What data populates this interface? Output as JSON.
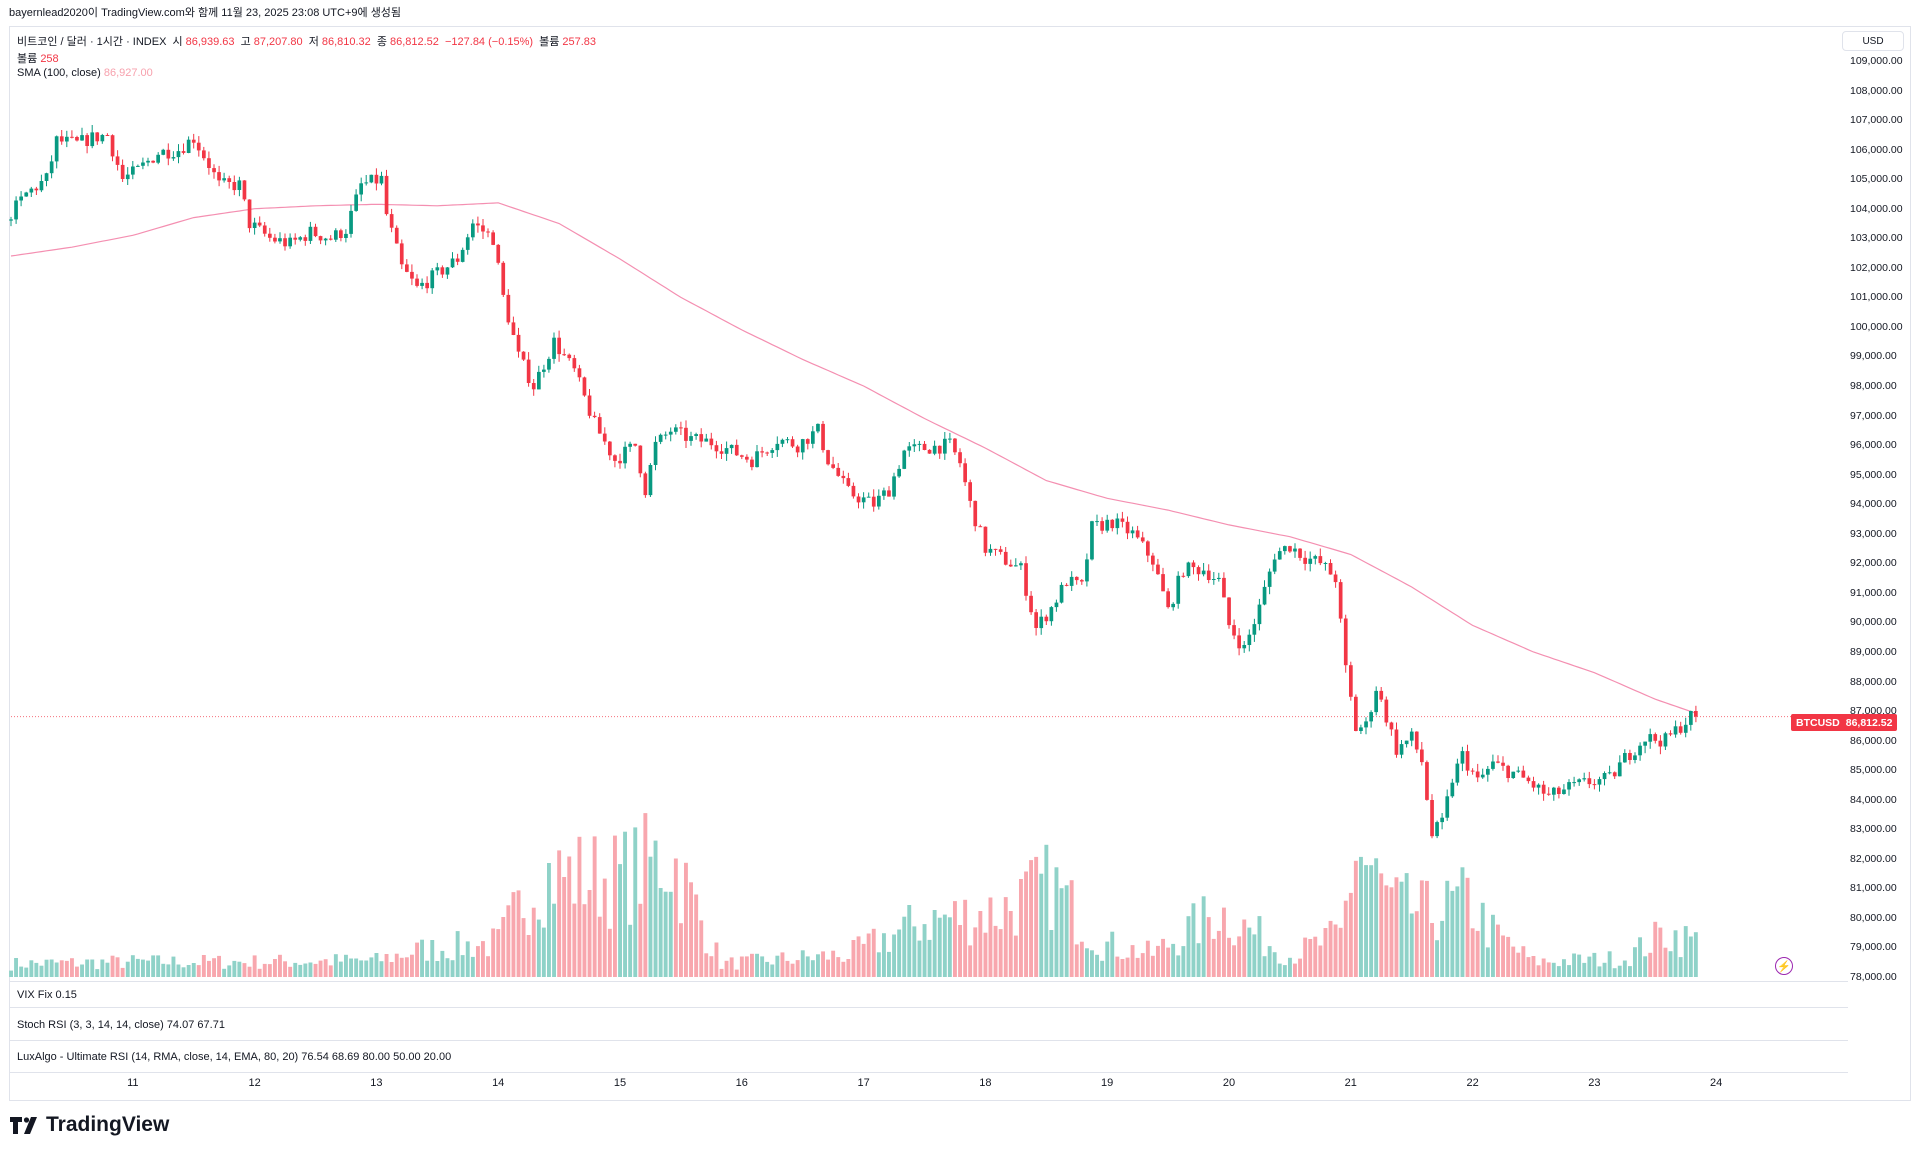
{
  "header": {
    "caption": "bayernlead2020이 TradingView.com와 함께 11월 23, 2025 23:08 UTC+9에 생성됨"
  },
  "legend": {
    "symbol": "비트코인 / 달러 · 1시간 · INDEX",
    "open_label": "시",
    "open": "86,939.63",
    "high_label": "고",
    "high": "87,207.80",
    "low_label": "저",
    "low": "86,810.32",
    "close_label": "종",
    "close": "86,812.52",
    "change": "−127.84 (−0.15%)",
    "volume_label": "볼륨",
    "volume": "257.83",
    "volume_row_label": "볼륨",
    "volume_row_value": "258",
    "sma_label": "SMA (100, close)",
    "sma_value": "86,927.00"
  },
  "indicators": {
    "vix_label": "VIX Fix",
    "vix_value": "0.15",
    "stoch_label": "Stoch RSI (3, 3, 14, 14, close)",
    "stoch_k": "74.07",
    "stoch_d": "67.71",
    "ursi_label": "LuxAlgo - Ultimate RSI (14, RMA, close, 14, EMA, 80, 20)",
    "ursi_v1": "76.54",
    "ursi_v2": "68.69",
    "ursi_v3": "80.00",
    "ursi_v4": "50.00",
    "ursi_v5": "20.00"
  },
  "currency": "USD",
  "price_tag": {
    "symbol": "BTCUSD",
    "value": "86,812.52"
  },
  "brand": "TradingView",
  "colors": {
    "up": "#089981",
    "down": "#f23645",
    "up_volume": "#8fd2c8",
    "down_volume": "#f8a7ae",
    "sma": "#f48fb1"
  },
  "chart_data": {
    "type": "candlestick",
    "title": "",
    "y_axis_ticks": [
      "109,000.00",
      "108,000.00",
      "107,000.00",
      "106,000.00",
      "105,000.00",
      "104,000.00",
      "103,000.00",
      "102,000.00",
      "101,000.00",
      "100,000.00",
      "99,000.00",
      "98,000.00",
      "97,000.00",
      "96,000.00",
      "95,000.00",
      "94,000.00",
      "93,000.00",
      "92,000.00",
      "91,000.00",
      "90,000.00",
      "89,000.00",
      "88,000.00",
      "87,000.00",
      "86,000.00",
      "85,000.00",
      "84,000.00",
      "83,000.00",
      "82,000.00",
      "81,000.00",
      "80,000.00",
      "79,000.00",
      "78,000.00"
    ],
    "y_tick_values": [
      109000,
      108000,
      107000,
      106000,
      105000,
      104000,
      103000,
      102000,
      101000,
      100000,
      99000,
      98000,
      97000,
      96000,
      95000,
      94000,
      93000,
      92000,
      91000,
      90000,
      89000,
      88000,
      87000,
      86000,
      85000,
      84000,
      83000,
      82000,
      81000,
      80000,
      79000,
      78000
    ],
    "ylim": [
      78000,
      109000
    ],
    "x_axis_ticks": [
      "11",
      "12",
      "13",
      "14",
      "15",
      "16",
      "17",
      "18",
      "19",
      "20",
      "21",
      "22",
      "23",
      "24"
    ],
    "x_tick_hours": [
      24,
      48,
      72,
      96,
      120,
      144,
      168,
      192,
      216,
      240,
      264,
      288,
      312,
      336
    ],
    "x_range_hours": [
      0,
      347
    ],
    "last_hour": 332,
    "price_path": [
      [
        0,
        103600
      ],
      [
        4,
        104500
      ],
      [
        8,
        105000
      ],
      [
        10,
        106300
      ],
      [
        14,
        106200
      ],
      [
        17,
        106400
      ],
      [
        20,
        106500
      ],
      [
        23,
        105000
      ],
      [
        26,
        105300
      ],
      [
        30,
        105900
      ],
      [
        34,
        106000
      ],
      [
        37,
        106400
      ],
      [
        40,
        105500
      ],
      [
        42,
        104800
      ],
      [
        46,
        104800
      ],
      [
        48,
        103500
      ],
      [
        52,
        103000
      ],
      [
        56,
        102800
      ],
      [
        60,
        103200
      ],
      [
        64,
        103000
      ],
      [
        67,
        103300
      ],
      [
        70,
        104800
      ],
      [
        74,
        105000
      ],
      [
        75,
        103800
      ],
      [
        78,
        102000
      ],
      [
        81,
        101300
      ],
      [
        85,
        101800
      ],
      [
        89,
        102300
      ],
      [
        92,
        103500
      ],
      [
        96,
        103000
      ],
      [
        98,
        101000
      ],
      [
        101,
        99000
      ],
      [
        104,
        98000
      ],
      [
        108,
        99500
      ],
      [
        112,
        98500
      ],
      [
        116,
        96700
      ],
      [
        120,
        95500
      ],
      [
        124,
        96000
      ],
      [
        126,
        94500
      ],
      [
        128,
        96000
      ],
      [
        131,
        96500
      ],
      [
        135,
        96200
      ],
      [
        139,
        96100
      ],
      [
        143,
        95800
      ],
      [
        147,
        95500
      ],
      [
        152,
        96200
      ],
      [
        156,
        96000
      ],
      [
        160,
        96500
      ],
      [
        162,
        95500
      ],
      [
        166,
        94400
      ],
      [
        171,
        94000
      ],
      [
        174,
        94500
      ],
      [
        177,
        95800
      ],
      [
        181,
        95900
      ],
      [
        186,
        96000
      ],
      [
        188,
        95400
      ],
      [
        190,
        94000
      ],
      [
        193,
        92500
      ],
      [
        197,
        92100
      ],
      [
        200,
        91800
      ],
      [
        203,
        89800
      ],
      [
        206,
        90500
      ],
      [
        209,
        91400
      ],
      [
        212,
        91200
      ],
      [
        214,
        93200
      ],
      [
        218,
        93400
      ],
      [
        222,
        93000
      ],
      [
        226,
        92100
      ],
      [
        229,
        90400
      ],
      [
        232,
        91800
      ],
      [
        236,
        91800
      ],
      [
        239,
        91400
      ],
      [
        241,
        89900
      ],
      [
        244,
        89100
      ],
      [
        247,
        90500
      ],
      [
        250,
        92300
      ],
      [
        253,
        92600
      ],
      [
        256,
        92200
      ],
      [
        259,
        92000
      ],
      [
        262,
        91500
      ],
      [
        264,
        88400
      ],
      [
        266,
        86400
      ],
      [
        268,
        86500
      ],
      [
        270,
        87800
      ],
      [
        272,
        86800
      ],
      [
        274,
        85700
      ],
      [
        277,
        86100
      ],
      [
        279,
        85300
      ],
      [
        281,
        82800
      ],
      [
        283,
        83200
      ],
      [
        285,
        84700
      ],
      [
        287,
        85500
      ],
      [
        290,
        84600
      ],
      [
        293,
        85200
      ],
      [
        297,
        84900
      ],
      [
        300,
        84600
      ],
      [
        304,
        84100
      ],
      [
        308,
        84400
      ],
      [
        312,
        84600
      ],
      [
        316,
        84700
      ],
      [
        319,
        85400
      ],
      [
        323,
        86100
      ],
      [
        327,
        86000
      ],
      [
        330,
        86500
      ],
      [
        332,
        86812
      ]
    ],
    "volume_ylim": [
      0,
      2200
    ],
    "volume_peaks": [
      [
        0,
        200
      ],
      [
        24,
        230
      ],
      [
        48,
        230
      ],
      [
        72,
        250
      ],
      [
        80,
        400
      ],
      [
        96,
        520
      ],
      [
        104,
        1550
      ],
      [
        120,
        1500
      ],
      [
        130,
        1850
      ],
      [
        140,
        200
      ],
      [
        165,
        340
      ],
      [
        180,
        850
      ],
      [
        195,
        1000
      ],
      [
        205,
        1400
      ],
      [
        215,
        500
      ],
      [
        225,
        350
      ],
      [
        238,
        1000
      ],
      [
        252,
        320
      ],
      [
        262,
        640
      ],
      [
        265,
        1950
      ],
      [
        272,
        1100
      ],
      [
        280,
        960
      ],
      [
        287,
        1160
      ],
      [
        292,
        660
      ],
      [
        300,
        230
      ],
      [
        318,
        280
      ],
      [
        326,
        670
      ],
      [
        332,
        540
      ]
    ],
    "sma_path": [
      [
        0,
        102400
      ],
      [
        12,
        102700
      ],
      [
        24,
        103100
      ],
      [
        36,
        103700
      ],
      [
        48,
        104000
      ],
      [
        60,
        104100
      ],
      [
        72,
        104150
      ],
      [
        84,
        104100
      ],
      [
        96,
        104200
      ],
      [
        108,
        103500
      ],
      [
        120,
        102300
      ],
      [
        132,
        101000
      ],
      [
        144,
        99900
      ],
      [
        156,
        98900
      ],
      [
        168,
        98000
      ],
      [
        180,
        96900
      ],
      [
        192,
        95900
      ],
      [
        204,
        94800
      ],
      [
        216,
        94200
      ],
      [
        228,
        93800
      ],
      [
        240,
        93300
      ],
      [
        252,
        92900
      ],
      [
        264,
        92300
      ],
      [
        276,
        91200
      ],
      [
        288,
        89900
      ],
      [
        300,
        89000
      ],
      [
        312,
        88300
      ],
      [
        324,
        87400
      ],
      [
        332,
        86927
      ]
    ]
  }
}
